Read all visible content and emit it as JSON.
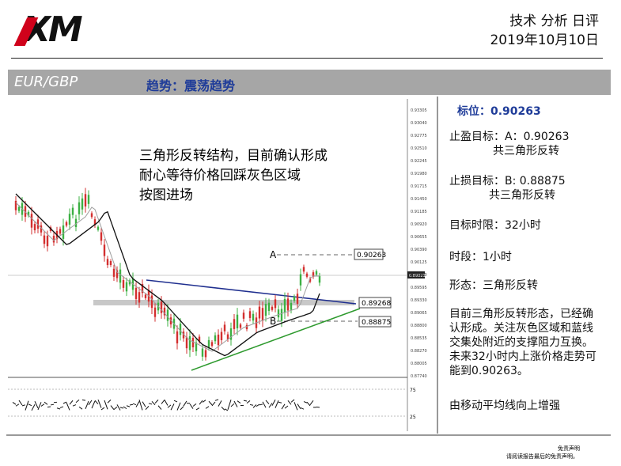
{
  "header": {
    "logo": "XM",
    "title": "技术 分析 日评",
    "date": "2019年10月10日"
  },
  "banner": {
    "pair": "EUR/GBP",
    "trend": "趋势：震荡趋势"
  },
  "chart": {
    "note": [
      "三角形反转结构，目前确认形成",
      "耐心等待价格回踩灰色区域",
      "按图进场"
    ],
    "labels": {
      "a": "A",
      "b": "B",
      "a_price": "0.90263",
      "zone_price": "0.89268",
      "b_price": "0.88875",
      "current": "0.89823"
    },
    "price_axis": [
      "0.93305",
      "0.93040",
      "0.92775",
      "0.92510",
      "0.92245",
      "0.91980",
      "0.91715",
      "0.91450",
      "0.91185",
      "0.90920",
      "0.90655",
      "0.90390",
      "0.90125",
      "0.89860",
      "0.89595",
      "0.89330",
      "0.89065",
      "0.88800",
      "0.88535",
      "0.88270",
      "0.88005",
      "0.87740"
    ],
    "osc_axis": [
      "75",
      "25"
    ]
  },
  "panel": {
    "level": "标位：0.90263",
    "items": [
      "止盈目标：A：0.90263",
      "共三角形反转",
      "止损目标：B: 0.88875",
      "共三角形反转",
      "目标时限：32小时",
      "时段：1小时",
      "形态：三角形反转"
    ],
    "paragraph": [
      "目前三角形反转形态，已经确",
      "认形成。关注灰色区域和蓝线",
      "交集处附近的支撑阻力互换。",
      "未来32小时内上涨价格走势可",
      "能到0.90263。"
    ],
    "last": "由移动平均线向上增强"
  },
  "footer": [
    "免责声明",
    "请阅读报告最后的免责声明。"
  ]
}
